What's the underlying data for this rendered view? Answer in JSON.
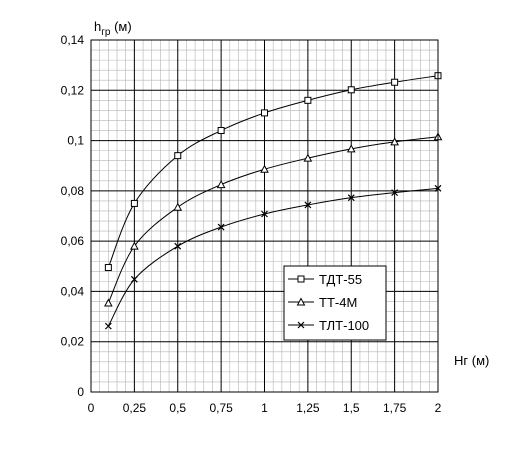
{
  "chart_data": {
    "type": "line",
    "title": "",
    "ylabel": "h",
    "ylabel_sub": "гр",
    "ylabel_unit": " (м)",
    "xlabel": "Нг (м)",
    "xlim": [
      0,
      2
    ],
    "ylim": [
      0,
      0.14
    ],
    "grid": true,
    "legend_position": "lower-right",
    "x_ticks": [
      0,
      0.25,
      0.5,
      0.75,
      1,
      1.25,
      1.5,
      1.75,
      2
    ],
    "x_tick_labels": [
      "0",
      "0,25",
      "0,5",
      "0,75",
      "1",
      "1,25",
      "1,5",
      "1,75",
      "2"
    ],
    "y_ticks": [
      0,
      0.02,
      0.04,
      0.06,
      0.08,
      0.1,
      0.12,
      0.14
    ],
    "y_tick_labels": [
      "0",
      "0,02",
      "0,04",
      "0,06",
      "0,08",
      "0,1",
      "0,12",
      "0,14"
    ],
    "x": [
      0.1,
      0.25,
      0.5,
      0.75,
      1,
      1.25,
      1.5,
      1.75,
      2
    ],
    "series": [
      {
        "name": "ТДТ-55",
        "marker": "square",
        "values": [
          0.0495,
          0.075,
          0.094,
          0.104,
          0.111,
          0.116,
          0.1202,
          0.1232,
          0.1258
        ]
      },
      {
        "name": "ТТ-4М",
        "marker": "triangle",
        "values": [
          0.0354,
          0.058,
          0.0735,
          0.0825,
          0.0886,
          0.093,
          0.0967,
          0.0995,
          0.1015
        ]
      },
      {
        "name": "ТЛТ-100",
        "marker": "x",
        "values": [
          0.0262,
          0.0448,
          0.058,
          0.0656,
          0.0708,
          0.0744,
          0.0773,
          0.0793,
          0.081
        ]
      }
    ]
  }
}
